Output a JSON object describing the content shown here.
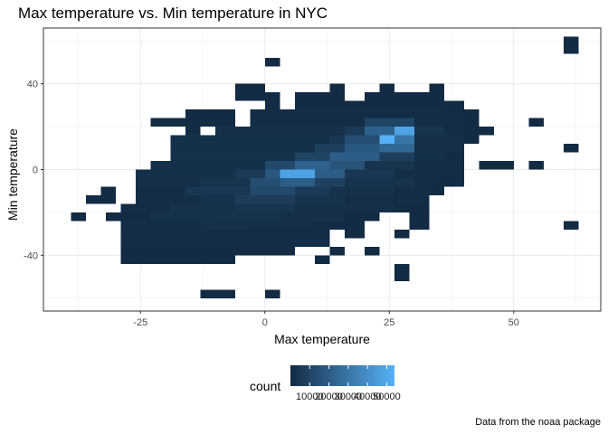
{
  "chart_data": {
    "type": "heatmap",
    "title": "Max temperature vs. Min temperature in NYC",
    "xlabel": "Max temperature",
    "ylabel": "Min temperature",
    "caption": "Data from the noaa package",
    "x_ticks": [
      -25,
      0,
      25,
      50
    ],
    "y_ticks": [
      -40,
      0,
      40
    ],
    "xlim": [
      -44.5,
      67.5
    ],
    "ylim": [
      -66,
      66
    ],
    "grid": true,
    "bin_width": 3.3,
    "bin_height": 4.0,
    "legend": {
      "title": "count",
      "labels": [
        "10000",
        "20000",
        "30000",
        "40000",
        "50000"
      ],
      "values": [
        10000,
        20000,
        30000,
        40000,
        50000
      ],
      "range": [
        0,
        54000
      ],
      "low_color": "#132B43",
      "high_color": "#56B1F7",
      "placement": "bottom"
    },
    "rows": [
      {
        "y": 60,
        "spans": [
          [
            60,
            63,
            100
          ]
        ]
      },
      {
        "y": 56,
        "spans": [
          [
            60,
            63,
            100
          ]
        ]
      },
      {
        "y": 50,
        "spans": [
          [
            0,
            3,
            100
          ]
        ]
      },
      {
        "y": 38,
        "spans": [
          [
            -6,
            0,
            100
          ],
          [
            13,
            16,
            100
          ],
          [
            23,
            26,
            100
          ],
          [
            33,
            36,
            100
          ]
        ]
      },
      {
        "y": 34,
        "spans": [
          [
            -6,
            3,
            100
          ],
          [
            6,
            16,
            100
          ],
          [
            20,
            36,
            200
          ]
        ]
      },
      {
        "y": 30,
        "spans": [
          [
            0,
            3,
            100
          ],
          [
            6,
            40,
            300
          ]
        ]
      },
      {
        "y": 26,
        "spans": [
          [
            -16,
            -6,
            100
          ],
          [
            -3,
            36,
            500
          ],
          [
            36,
            43,
            100
          ]
        ]
      },
      {
        "y": 22,
        "spans": [
          [
            -23,
            -13,
            100
          ],
          [
            -13,
            -6,
            100
          ],
          [
            -3,
            20,
            1000
          ],
          [
            20,
            30,
            10000
          ],
          [
            30,
            40,
            800
          ],
          [
            40,
            43,
            100
          ],
          [
            53,
            56,
            100
          ]
        ]
      },
      {
        "y": 18,
        "spans": [
          [
            -16,
            -13,
            100
          ],
          [
            -10,
            16,
            1500
          ],
          [
            16,
            20,
            6000
          ],
          [
            20,
            26,
            22000
          ],
          [
            26,
            30,
            48000
          ],
          [
            30,
            36,
            4000
          ],
          [
            36,
            40,
            400
          ],
          [
            40,
            43,
            100
          ],
          [
            43,
            46,
            100
          ]
        ]
      },
      {
        "y": 14,
        "spans": [
          [
            -19,
            13,
            2000
          ],
          [
            13,
            16,
            5000
          ],
          [
            16,
            23,
            14000
          ],
          [
            23,
            26,
            54000
          ],
          [
            26,
            30,
            30000
          ],
          [
            30,
            40,
            1500
          ],
          [
            40,
            43,
            100
          ]
        ]
      },
      {
        "y": 10,
        "spans": [
          [
            -19,
            10,
            2000
          ],
          [
            10,
            16,
            8000
          ],
          [
            16,
            23,
            18000
          ],
          [
            23,
            30,
            24000
          ],
          [
            30,
            40,
            1500
          ],
          [
            60,
            63,
            100
          ]
        ]
      },
      {
        "y": 6,
        "spans": [
          [
            -19,
            6,
            2500
          ],
          [
            6,
            13,
            10000
          ],
          [
            13,
            23,
            20000
          ],
          [
            23,
            30,
            8000
          ],
          [
            30,
            36,
            2000
          ],
          [
            36,
            40,
            200
          ]
        ]
      },
      {
        "y": 2,
        "spans": [
          [
            -23,
            0,
            2000
          ],
          [
            0,
            6,
            12000
          ],
          [
            6,
            13,
            22000
          ],
          [
            13,
            20,
            16000
          ],
          [
            20,
            30,
            4000
          ],
          [
            30,
            40,
            500
          ],
          [
            43,
            50,
            100
          ],
          [
            53,
            56,
            100
          ]
        ]
      },
      {
        "y": -2,
        "spans": [
          [
            -26,
            -6,
            2000
          ],
          [
            -6,
            0,
            6000
          ],
          [
            0,
            3,
            18000
          ],
          [
            3,
            10,
            48000
          ],
          [
            10,
            16,
            20000
          ],
          [
            16,
            26,
            5000
          ],
          [
            26,
            36,
            1000
          ],
          [
            36,
            40,
            100
          ]
        ]
      },
      {
        "y": -6,
        "spans": [
          [
            -26,
            -13,
            1500
          ],
          [
            -13,
            -3,
            4000
          ],
          [
            -3,
            3,
            14000
          ],
          [
            3,
            10,
            20000
          ],
          [
            10,
            16,
            9000
          ],
          [
            16,
            30,
            3000
          ],
          [
            30,
            36,
            400
          ],
          [
            36,
            40,
            100
          ]
        ]
      },
      {
        "y": -10,
        "spans": [
          [
            -33,
            -30,
            100
          ],
          [
            -26,
            -16,
            1000
          ],
          [
            -16,
            -3,
            5000
          ],
          [
            -3,
            6,
            12000
          ],
          [
            6,
            13,
            6000
          ],
          [
            13,
            26,
            2500
          ],
          [
            26,
            33,
            500
          ],
          [
            33,
            36,
            100
          ]
        ]
      },
      {
        "y": -14,
        "spans": [
          [
            -36,
            -30,
            100
          ],
          [
            -26,
            -13,
            1000
          ],
          [
            -13,
            -6,
            3000
          ],
          [
            -6,
            6,
            7000
          ],
          [
            6,
            16,
            3500
          ],
          [
            16,
            33,
            1000
          ]
        ]
      },
      {
        "y": -18,
        "spans": [
          [
            -29,
            -19,
            500
          ],
          [
            -19,
            -6,
            2500
          ],
          [
            -6,
            6,
            4000
          ],
          [
            6,
            26,
            1500
          ],
          [
            26,
            33,
            300
          ]
        ]
      },
      {
        "y": -22,
        "spans": [
          [
            -39,
            -36,
            100
          ],
          [
            -32,
            -23,
            300
          ],
          [
            -23,
            -10,
            2000
          ],
          [
            -10,
            3,
            3500
          ],
          [
            3,
            16,
            1500
          ],
          [
            16,
            20,
            200
          ],
          [
            20,
            23,
            100
          ],
          [
            29,
            33,
            100
          ]
        ]
      },
      {
        "y": -26,
        "spans": [
          [
            -29,
            -13,
            800
          ],
          [
            -13,
            -3,
            1500
          ],
          [
            -3,
            10,
            1200
          ],
          [
            10,
            16,
            300
          ],
          [
            16,
            20,
            100
          ],
          [
            29,
            33,
            100
          ],
          [
            60,
            63,
            100
          ]
        ]
      },
      {
        "y": -30,
        "spans": [
          [
            -29,
            13,
            600
          ],
          [
            16,
            20,
            100
          ],
          [
            26,
            29,
            100
          ]
        ]
      },
      {
        "y": -34,
        "spans": [
          [
            -29,
            13,
            500
          ]
        ]
      },
      {
        "y": -38,
        "spans": [
          [
            -29,
            6,
            400
          ],
          [
            13,
            16,
            100
          ],
          [
            20,
            23,
            100
          ]
        ]
      },
      {
        "y": -42,
        "spans": [
          [
            -29,
            -6,
            300
          ],
          [
            10,
            13,
            100
          ]
        ]
      },
      {
        "y": -46,
        "spans": [
          [
            26,
            29,
            100
          ]
        ]
      },
      {
        "y": -50,
        "spans": [
          [
            26,
            29,
            100
          ]
        ]
      },
      {
        "y": -58,
        "spans": [
          [
            -13,
            -6,
            100
          ],
          [
            0,
            3,
            100
          ]
        ]
      }
    ]
  }
}
